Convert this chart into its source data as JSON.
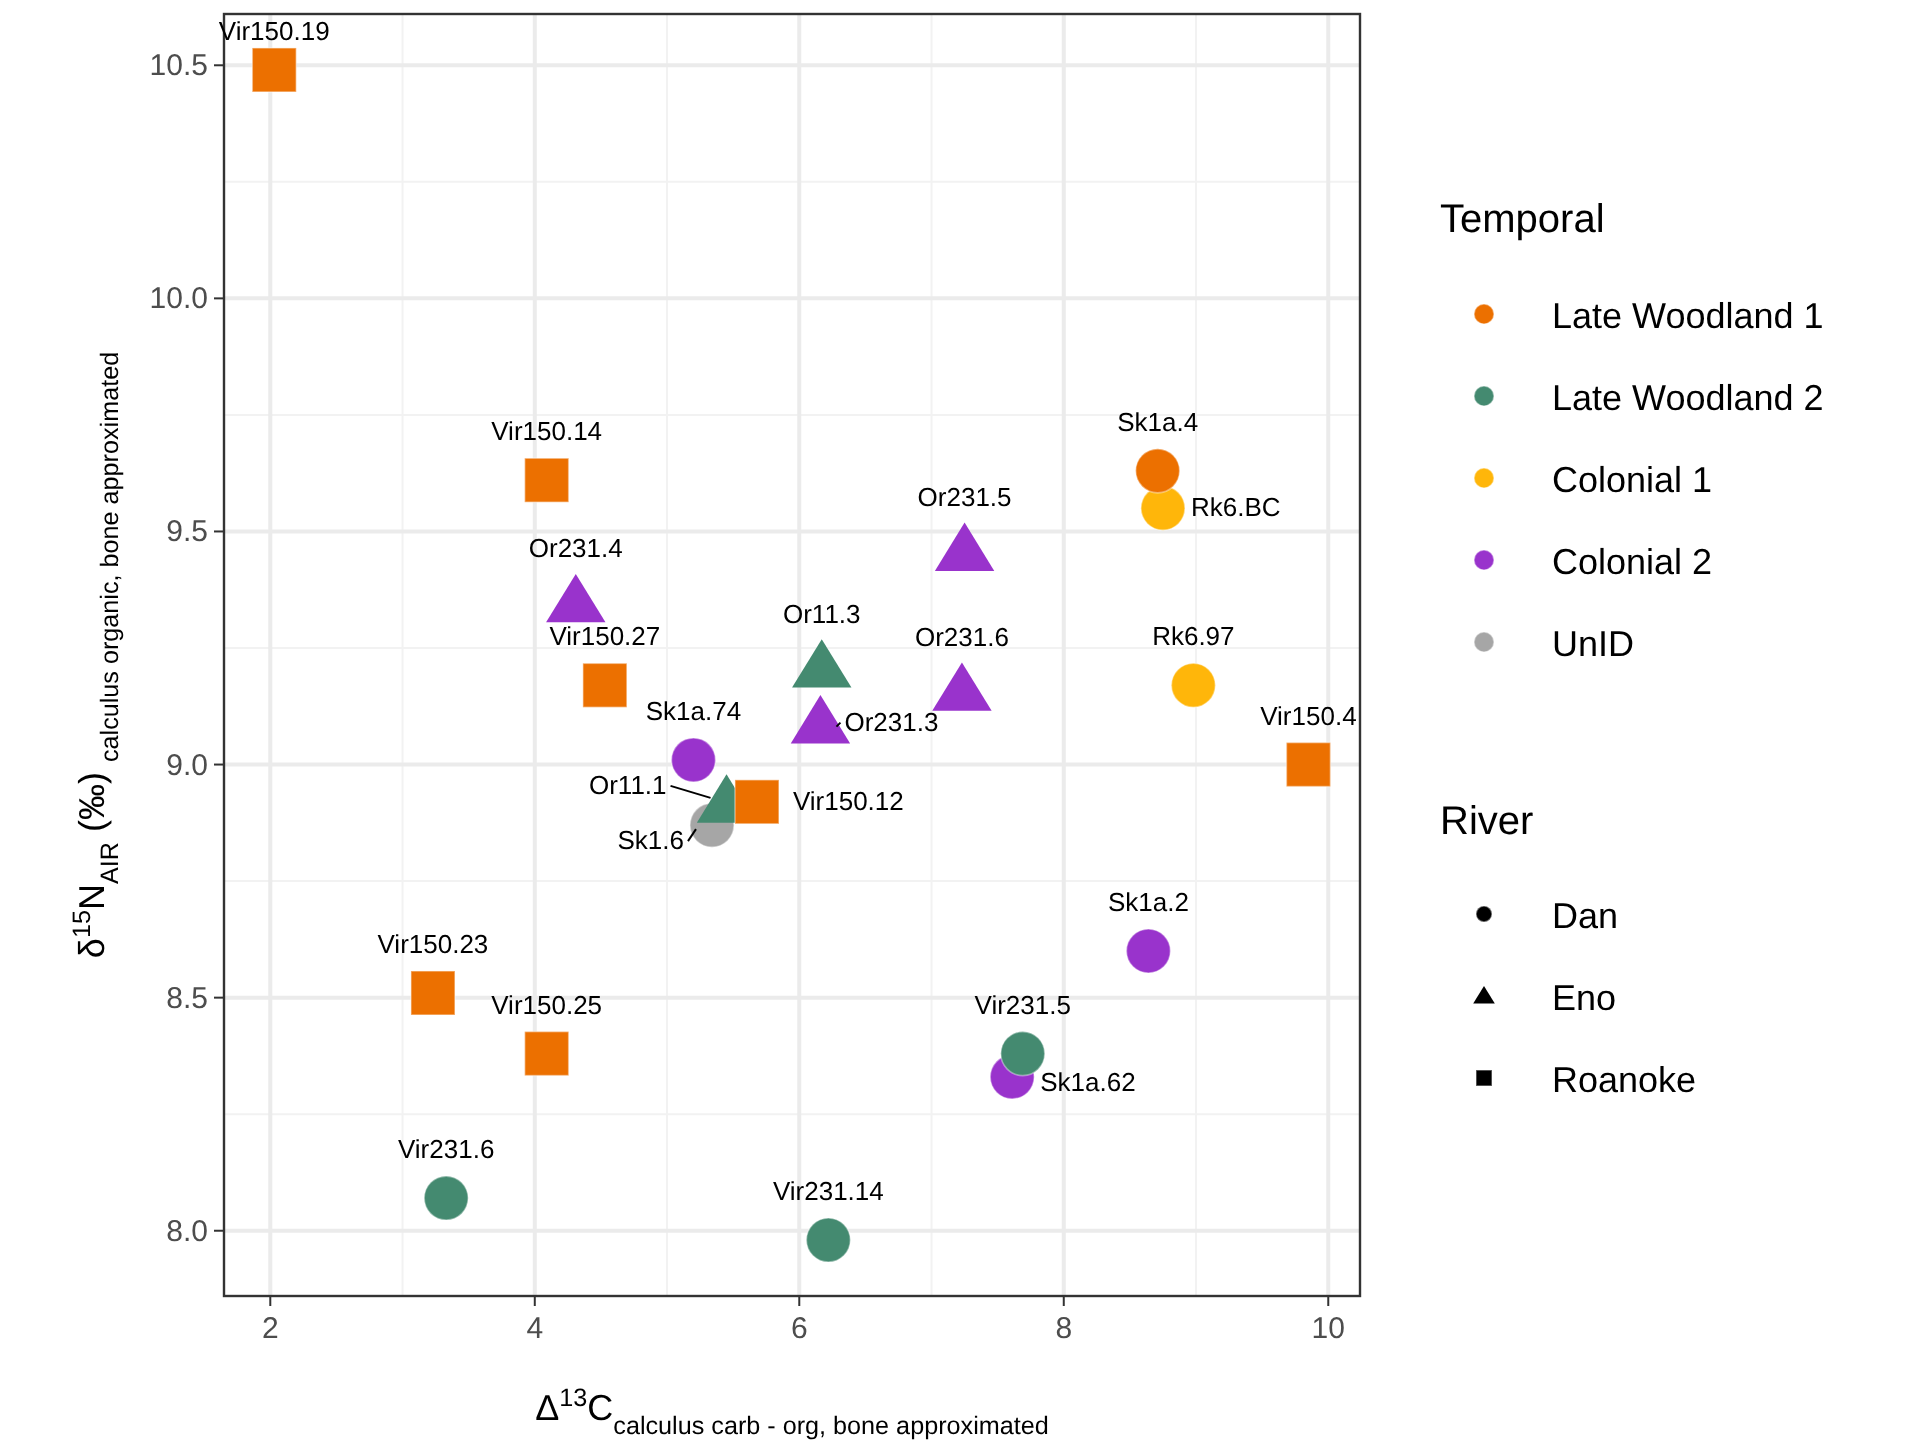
{
  "chart_data": {
    "type": "scatter",
    "xlabel": "Δ$^{13}$C$_{calculus carb - org, bone approximated}$",
    "ylabel": "δ$^{15}$N$_{AIR}$ (‰) $_{calculus organic, bone approximated}$",
    "xlim": [
      1.65,
      10.24
    ],
    "ylim": [
      7.86,
      10.61
    ],
    "xticks": [
      2,
      4,
      6,
      8,
      10
    ],
    "yticks": [
      {
        "value": 8,
        "label": "8.0"
      },
      {
        "value": 8.5,
        "label": "8.5"
      },
      {
        "value": 9,
        "label": "9.0"
      },
      {
        "value": 9.5,
        "label": "9.5"
      },
      {
        "value": 10,
        "label": "10.0"
      },
      {
        "value": 10.5,
        "label": "10.5"
      }
    ],
    "grid": true,
    "legend": "right",
    "legend_title": [
      "Temporal",
      "River"
    ],
    "series": [
      {
        "name": "Late Woodland 1",
        "color": "#ec7000",
        "x": [
          2.03,
          4.09,
          4.53,
          5.68,
          3.23,
          4.09,
          9.85,
          8.71
        ],
        "values": [
          10.49,
          9.61,
          9.17,
          8.92,
          8.51,
          8.38,
          9.0,
          9.63
        ],
        "marker": [
          "square",
          "square",
          "square",
          "square",
          "square",
          "square",
          "square",
          "circle"
        ]
      },
      {
        "name": "Late Woodland 2",
        "color": "#448a70",
        "x": [
          5.45,
          6.17,
          3.33,
          7.69,
          6.22
        ],
        "values": [
          8.92,
          9.21,
          8.07,
          8.38,
          7.98
        ],
        "marker": [
          "triangle",
          "triangle",
          "circle",
          "circle",
          "circle"
        ]
      },
      {
        "name": "Colonial 1",
        "color": "#ffb60a",
        "x": [
          8.75,
          8.98
        ],
        "values": [
          9.55,
          9.17
        ],
        "marker": [
          "circle",
          "circle"
        ]
      },
      {
        "name": "Colonial 2",
        "color": "#9933cc",
        "x": [
          4.31,
          7.25,
          7.23,
          6.16,
          5.2,
          8.64,
          7.61
        ],
        "values": [
          9.35,
          9.46,
          9.16,
          9.09,
          9.01,
          8.6,
          8.33
        ],
        "marker": [
          "triangle",
          "triangle",
          "triangle",
          "triangle",
          "circle",
          "circle",
          "circle"
        ]
      },
      {
        "name": "UnID",
        "color": "#a6a6a6",
        "x": [
          5.34
        ],
        "values": [
          8.87
        ],
        "marker": [
          "circle"
        ]
      },
      {
        "name": "Dan",
        "color": "#000000",
        "marker": "circle"
      },
      {
        "name": "Eno",
        "color": "#000000",
        "marker": "triangle"
      },
      {
        "name": "Roanoke",
        "color": "#000000",
        "marker": "square"
      }
    ],
    "annotations": [
      {
        "text": "Vir150.19",
        "x": 2.03,
        "y": 10.49
      },
      {
        "text": "Vir150.14",
        "x": 4.09,
        "y": 9.61
      },
      {
        "text": "Vir150.27",
        "x": 4.53,
        "y": 9.17
      },
      {
        "text": "Vir150.12",
        "x": 5.68,
        "y": 8.92
      },
      {
        "text": "Vir150.23",
        "x": 3.23,
        "y": 8.51
      },
      {
        "text": "Vir150.25",
        "x": 4.09,
        "y": 8.38
      },
      {
        "text": "Vir150.4",
        "x": 9.85,
        "y": 9.0
      },
      {
        "text": "Sk1a.4",
        "x": 8.71,
        "y": 9.63
      },
      {
        "text": "Or11.1",
        "x": 5.45,
        "y": 8.92
      },
      {
        "text": "Or11.3",
        "x": 6.17,
        "y": 9.21
      },
      {
        "text": "Vir231.6",
        "x": 3.33,
        "y": 8.07
      },
      {
        "text": "Vir231.5",
        "x": 7.69,
        "y": 8.38
      },
      {
        "text": "Vir231.14",
        "x": 6.22,
        "y": 7.98
      },
      {
        "text": "Rk6.BC",
        "x": 8.75,
        "y": 9.55
      },
      {
        "text": "Rk6.97",
        "x": 8.98,
        "y": 9.17
      },
      {
        "text": "Or231.4",
        "x": 4.31,
        "y": 9.35
      },
      {
        "text": "Or231.5",
        "x": 7.25,
        "y": 9.46
      },
      {
        "text": "Or231.6",
        "x": 7.23,
        "y": 9.16
      },
      {
        "text": "Or231.3",
        "x": 6.16,
        "y": 9.09
      },
      {
        "text": "Sk1a.74",
        "x": 5.2,
        "y": 9.01
      },
      {
        "text": "Sk1a.2",
        "x": 8.64,
        "y": 8.6
      },
      {
        "text": "Sk1a.62",
        "x": 7.61,
        "y": 8.33
      },
      {
        "text": "Sk1.6",
        "x": 5.34,
        "y": 8.87
      }
    ]
  }
}
